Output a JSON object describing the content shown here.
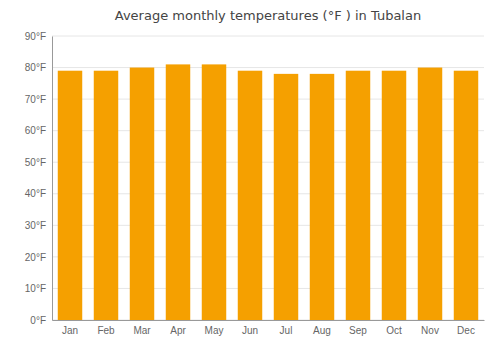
{
  "chart_data": {
    "type": "bar",
    "title": "Average monthly temperatures (°F ) in Tubalan",
    "categories": [
      "Jan",
      "Feb",
      "Mar",
      "Apr",
      "May",
      "Jun",
      "Jul",
      "Aug",
      "Sep",
      "Oct",
      "Nov",
      "Dec"
    ],
    "values": [
      79,
      79,
      80,
      81,
      81,
      79,
      78,
      78,
      79,
      79,
      80,
      79
    ],
    "color": "#F5A000",
    "ylim": [
      0,
      90
    ],
    "yticks": [
      {
        "value": 0,
        "label": "0°F"
      },
      {
        "value": 10,
        "label": "10°F"
      },
      {
        "value": 20,
        "label": "20°F"
      },
      {
        "value": 30,
        "label": "30°F"
      },
      {
        "value": 40,
        "label": "40°F"
      },
      {
        "value": 50,
        "label": "50°F"
      },
      {
        "value": 60,
        "label": "60°F"
      },
      {
        "value": 70,
        "label": "70°F"
      },
      {
        "value": 80,
        "label": "80°F"
      },
      {
        "value": 90,
        "label": "90°F"
      }
    ],
    "grid": true
  }
}
